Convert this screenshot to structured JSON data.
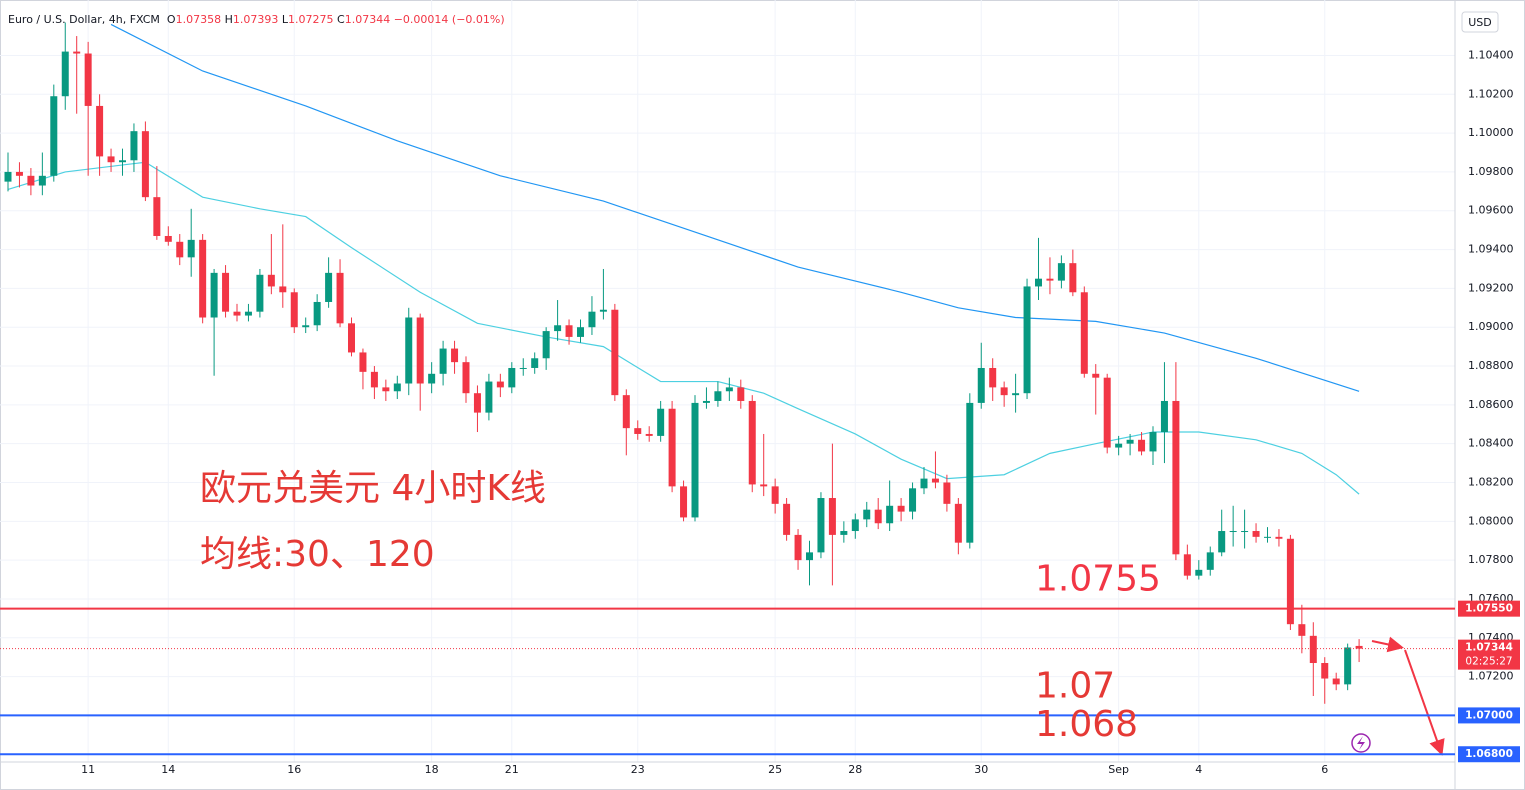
{
  "chart_data": {
    "type": "candlestick",
    "title": "Euro / U.S. Dollar, 4h, FXCM",
    "ohlc_labels": [
      "O",
      "H",
      "L",
      "C"
    ],
    "change": "−0.00014 (−0.01%)",
    "currency": "USD",
    "countdown": "02:25:27",
    "up_color": "#089981",
    "down_color": "#f23645",
    "categories": [
      null,
      null,
      null,
      null,
      null,
      null,
      null,
      "11",
      null,
      null,
      null,
      null,
      null,
      null,
      "14",
      null,
      null,
      null,
      null,
      null,
      null,
      null,
      null,
      null,
      null,
      "16",
      null,
      null,
      null,
      null,
      null,
      null,
      null,
      null,
      null,
      null,
      null,
      "18",
      null,
      null,
      null,
      null,
      null,
      null,
      "21",
      null,
      null,
      null,
      null,
      null,
      null,
      null,
      null,
      null,
      null,
      "23",
      null,
      null,
      null,
      null,
      null,
      null,
      null,
      null,
      null,
      null,
      null,
      "25",
      null,
      null,
      null,
      null,
      null,
      null,
      "28",
      null,
      null,
      null,
      null,
      null,
      null,
      null,
      null,
      null,
      null,
      "30",
      null,
      null,
      null,
      null,
      null,
      null,
      null,
      null,
      null,
      null,
      null,
      "Sep",
      null,
      null,
      null,
      null,
      null,
      null,
      "4",
      null,
      null,
      null,
      null,
      null,
      null,
      null,
      null,
      null,
      null,
      "6",
      null,
      null,
      null
    ],
    "open": [
      1.0975,
      1.098,
      1.0978,
      1.0973,
      1.0978,
      1.1019,
      1.1042,
      1.1041,
      1.1014,
      1.0988,
      1.0985,
      1.0986,
      1.1001,
      1.0967,
      1.0947,
      1.0944,
      1.0936,
      1.0945,
      1.0905,
      1.0928,
      1.0908,
      1.0906,
      1.0908,
      1.0927,
      1.0921,
      1.0918,
      1.09,
      1.0901,
      1.0913,
      1.0928,
      1.0902,
      1.0887,
      1.0877,
      1.0869,
      1.0867,
      1.0871,
      1.0905,
      1.0871,
      1.0876,
      1.0889,
      1.0882,
      1.0866,
      1.0856,
      1.0872,
      1.0869,
      1.0879,
      1.0879,
      1.0884,
      1.0898,
      1.0901,
      1.0895,
      1.09,
      1.0908,
      1.0909,
      1.0865,
      1.0848,
      1.0845,
      1.0844,
      1.0858,
      1.0818,
      1.0802,
      1.0861,
      1.0862,
      1.0867,
      1.0869,
      1.0862,
      1.0819,
      1.0818,
      1.0809,
      1.0793,
      1.078,
      1.0784,
      1.0812,
      1.0793,
      1.0795,
      1.0801,
      1.0806,
      1.0799,
      1.0808,
      1.0805,
      1.0817,
      1.0822,
      1.082,
      1.0809,
      1.0789,
      1.0861,
      1.0879,
      1.0869,
      1.0865,
      1.0866,
      1.0921,
      1.0925,
      1.0924,
      1.0933,
      1.0918,
      1.0876,
      1.0874,
      1.0838,
      1.084,
      1.0842,
      1.0836,
      1.0846,
      1.0862,
      1.0783,
      1.0772,
      1.0775,
      1.0784,
      1.0795,
      1.0795,
      1.0795,
      1.0792,
      1.0792,
      1.0791,
      1.0747,
      1.0741,
      1.0727,
      1.0719,
      1.0716,
      1.07358
    ],
    "high": [
      1.099,
      1.0985,
      1.0982,
      1.099,
      1.1025,
      1.1057,
      1.105,
      1.1047,
      1.102,
      1.0992,
      1.0992,
      1.1005,
      1.1006,
      1.0983,
      1.0952,
      1.0948,
      1.0961,
      1.0948,
      1.093,
      1.0932,
      1.0912,
      1.0912,
      1.093,
      1.0948,
      1.0953,
      1.092,
      1.0905,
      1.0917,
      1.0936,
      1.0935,
      1.0905,
      1.0889,
      1.088,
      1.0873,
      1.0875,
      1.091,
      1.0907,
      1.0882,
      1.0893,
      1.0893,
      1.0885,
      1.087,
      1.0876,
      1.0876,
      1.0882,
      1.0884,
      1.0887,
      1.09,
      1.0914,
      1.0904,
      1.0904,
      1.0916,
      1.093,
      1.0912,
      1.0868,
      1.0852,
      1.0849,
      1.0862,
      1.0862,
      1.0821,
      1.0865,
      1.0869,
      1.0872,
      1.0874,
      1.0873,
      1.0865,
      1.0845,
      1.0822,
      1.0812,
      1.0796,
      1.079,
      1.0815,
      1.084,
      1.08,
      1.0804,
      1.081,
      1.0812,
      1.0821,
      1.0812,
      1.082,
      1.0828,
      1.0836,
      1.0824,
      1.0812,
      1.0866,
      1.0892,
      1.0884,
      1.0872,
      1.0876,
      1.0925,
      1.0946,
      1.0936,
      1.0937,
      1.094,
      1.0921,
      1.0881,
      1.0876,
      1.0844,
      1.0845,
      1.0846,
      1.0849,
      1.0882,
      1.0882,
      1.0788,
      1.078,
      1.0787,
      1.0806,
      1.0808,
      1.0806,
      1.0799,
      1.0797,
      1.0796,
      1.0793,
      1.0757,
      1.0748,
      1.073,
      1.0722,
      1.0737,
      1.07393
    ],
    "low": [
      1.097,
      1.0972,
      1.0968,
      1.0968,
      1.0975,
      1.1012,
      1.101,
      1.0978,
      1.0978,
      1.098,
      1.0978,
      1.098,
      1.0965,
      1.0945,
      1.0942,
      1.0932,
      1.0926,
      1.0902,
      1.0875,
      1.0905,
      1.0903,
      1.0903,
      1.0905,
      1.0917,
      1.091,
      1.0897,
      1.0897,
      1.0898,
      1.091,
      1.09,
      1.0885,
      1.0868,
      1.0863,
      1.0862,
      1.0863,
      1.0865,
      1.0857,
      1.0866,
      1.087,
      1.0876,
      1.0861,
      1.0846,
      1.0852,
      1.0864,
      1.0866,
      1.0875,
      1.0876,
      1.0878,
      1.0893,
      1.0891,
      1.0892,
      1.0896,
      1.0904,
      1.0862,
      1.0834,
      1.0842,
      1.0841,
      1.0841,
      1.0815,
      1.08,
      1.08,
      1.0858,
      1.0859,
      1.0862,
      1.0858,
      1.0815,
      1.0813,
      1.0804,
      1.079,
      1.0775,
      1.0767,
      1.0781,
      1.0767,
      1.0789,
      1.0791,
      1.0797,
      1.0796,
      1.0795,
      1.08,
      1.0801,
      1.0814,
      1.0817,
      1.0805,
      1.0783,
      1.0786,
      1.0858,
      1.0862,
      1.0859,
      1.0856,
      1.0863,
      1.0914,
      1.0917,
      1.092,
      1.0916,
      1.0874,
      1.0855,
      1.0835,
      1.0834,
      1.0834,
      1.0834,
      1.0829,
      1.083,
      1.078,
      1.077,
      1.077,
      1.0772,
      1.0782,
      1.0787,
      1.0786,
      1.0789,
      1.0789,
      1.0787,
      1.0744,
      1.0732,
      1.071,
      1.0706,
      1.0713,
      1.0713,
      1.07275
    ],
    "close": [
      1.098,
      1.0978,
      1.0973,
      1.0978,
      1.1019,
      1.1042,
      1.1041,
      1.1014,
      1.0988,
      1.0985,
      1.0986,
      1.1001,
      1.0967,
      1.0947,
      1.0944,
      1.0936,
      1.0945,
      1.0905,
      1.0928,
      1.0908,
      1.0906,
      1.0908,
      1.0927,
      1.0921,
      1.0918,
      1.09,
      1.0901,
      1.0913,
      1.0928,
      1.0902,
      1.0887,
      1.0877,
      1.0869,
      1.0867,
      1.0871,
      1.0905,
      1.0871,
      1.0876,
      1.0889,
      1.0882,
      1.0866,
      1.0856,
      1.0872,
      1.0869,
      1.0879,
      1.0879,
      1.0884,
      1.0898,
      1.0901,
      1.0895,
      1.09,
      1.0908,
      1.0909,
      1.0865,
      1.0848,
      1.0845,
      1.0844,
      1.0858,
      1.0818,
      1.0802,
      1.0861,
      1.0862,
      1.0867,
      1.0869,
      1.0862,
      1.0819,
      1.0818,
      1.0809,
      1.0793,
      1.078,
      1.0784,
      1.0812,
      1.0793,
      1.0795,
      1.0801,
      1.0806,
      1.0799,
      1.0808,
      1.0805,
      1.0817,
      1.0822,
      1.082,
      1.0809,
      1.0789,
      1.0861,
      1.0879,
      1.0869,
      1.0865,
      1.0866,
      1.0921,
      1.0925,
      1.0924,
      1.0933,
      1.0918,
      1.0876,
      1.0874,
      1.0838,
      1.084,
      1.0842,
      1.0836,
      1.0846,
      1.0862,
      1.0783,
      1.0772,
      1.0775,
      1.0784,
      1.0795,
      1.0795,
      1.0795,
      1.0792,
      1.0792,
      1.0791,
      1.0747,
      1.0741,
      1.0727,
      1.0719,
      1.0716,
      1.0735,
      1.07344
    ],
    "series": [
      {
        "color": "#4dd0e1",
        "x": [
          0,
          5,
          12,
          17,
          22,
          26,
          30,
          36,
          41,
          47,
          52,
          57,
          62,
          66,
          69,
          74,
          78,
          82,
          87,
          91,
          95,
          100,
          104,
          109,
          113,
          116,
          118
        ],
        "values": [
          1.0971,
          1.098,
          1.0985,
          1.0967,
          1.0961,
          1.0957,
          1.0941,
          1.0918,
          1.0902,
          1.0895,
          1.089,
          1.0872,
          1.0872,
          1.0866,
          1.0858,
          1.0845,
          1.0832,
          1.0822,
          1.0824,
          1.0835,
          1.084,
          1.0846,
          1.0846,
          1.0842,
          1.0835,
          1.0824,
          1.0814
        ]
      },
      {
        "color": "#2196f3",
        "x": [
          9,
          17,
          26,
          34,
          43,
          52,
          61,
          69,
          78,
          83,
          88,
          95,
          101,
          109,
          118
        ],
        "values": [
          1.1056,
          1.1032,
          1.1014,
          1.0996,
          1.0978,
          1.0965,
          1.0947,
          1.0931,
          1.0918,
          1.091,
          1.0905,
          1.0903,
          1.0897,
          1.0884,
          1.0867
        ]
      }
    ],
    "hlines": [
      {
        "value": 1.0755,
        "color": "#f23645",
        "tag": "1.07550"
      },
      {
        "value": 1.07,
        "color": "#2962ff",
        "tag": "1.07000"
      },
      {
        "value": 1.068,
        "color": "#2962ff",
        "tag": "1.06800"
      }
    ],
    "annotations": [
      "欧元兑美元 4小时K线",
      "均线:30、120"
    ],
    "ylim": [
      1.0676,
      1.1066
    ],
    "yticks": [
      {
        "value": 1.068,
        "label": "1.06800"
      },
      {
        "value": 1.07,
        "label": "1.07000"
      },
      {
        "value": 1.072,
        "label": "1.07200"
      },
      {
        "value": 1.074,
        "label": "1.07400"
      },
      {
        "value": 1.076,
        "label": "1.07600"
      },
      {
        "value": 1.078,
        "label": "1.07800"
      },
      {
        "value": 1.08,
        "label": "1.08000"
      },
      {
        "value": 1.082,
        "label": "1.08200"
      },
      {
        "value": 1.084,
        "label": "1.08400"
      },
      {
        "value": 1.086,
        "label": "1.08600"
      },
      {
        "value": 1.088,
        "label": "1.08800"
      },
      {
        "value": 1.09,
        "label": "1.09000"
      },
      {
        "value": 1.092,
        "label": "1.09200"
      },
      {
        "value": 1.094,
        "label": "1.09400"
      },
      {
        "value": 1.096,
        "label": "1.09600"
      },
      {
        "value": 1.098,
        "label": "1.09800"
      },
      {
        "value": 1.1,
        "label": "1.10000"
      },
      {
        "value": 1.102,
        "label": "1.10200"
      },
      {
        "value": 1.104,
        "label": "1.10400"
      }
    ],
    "grid": true
  }
}
